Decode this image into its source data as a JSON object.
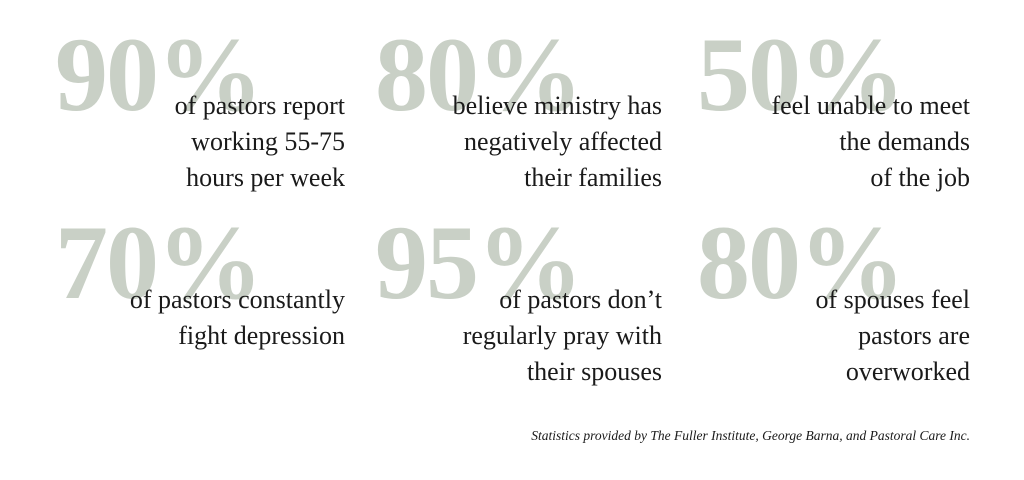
{
  "stats": [
    {
      "figure": "90%",
      "lines": [
        "of pastors report",
        "working 55-75",
        "hours per week"
      ]
    },
    {
      "figure": "80%",
      "lines": [
        "believe ministry has",
        "negatively affected",
        "their families"
      ]
    },
    {
      "figure": "50%",
      "lines": [
        "feel unable to meet",
        "the demands",
        "of the job"
      ]
    },
    {
      "figure": "70%",
      "lines": [
        "of pastors constantly",
        "fight depression"
      ]
    },
    {
      "figure": "95%",
      "lines": [
        "of pastors don’t",
        "regularly pray with",
        "their spouses"
      ]
    },
    {
      "figure": "80%",
      "lines": [
        "of spouses feel",
        "pastors are",
        "overworked"
      ]
    }
  ],
  "footer": "Statistics provided by The Fuller Institute, George Barna, and Pastoral Care Inc."
}
